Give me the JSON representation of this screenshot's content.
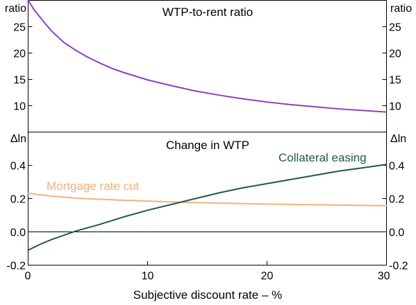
{
  "chart_data": [
    {
      "type": "line",
      "title": "WTP-to-rent ratio",
      "y_unit": "ratio",
      "ylim": [
        5,
        30
      ],
      "yticks": [
        10,
        15,
        20,
        25
      ],
      "yticklabels": [
        "10",
        "15",
        "20",
        "25"
      ],
      "xlim": [
        0,
        30
      ],
      "grid": false,
      "series": [
        {
          "color": "#8b3fc6",
          "x": [
            0,
            0.5,
            1,
            1.5,
            2,
            3,
            4,
            5,
            6,
            7,
            8,
            10,
            12,
            14,
            16,
            18,
            20,
            22,
            24,
            26,
            28,
            30
          ],
          "values": [
            30.0,
            28.2,
            26.8,
            25.4,
            24.1,
            22.0,
            20.5,
            19.2,
            18.1,
            17.1,
            16.3,
            14.9,
            13.8,
            12.8,
            12.0,
            11.3,
            10.7,
            10.2,
            9.8,
            9.4,
            9.1,
            8.8
          ]
        }
      ]
    },
    {
      "type": "line",
      "title": "Change in WTP",
      "y_unit": "Δln",
      "ylim": [
        -0.2,
        0.6
      ],
      "yticks": [
        -0.2,
        0,
        0.2,
        0.4
      ],
      "yticklabels": [
        "-0.2",
        "0.0",
        "0.2",
        "0.4"
      ],
      "xlim": [
        0,
        30
      ],
      "xticks": [
        0,
        10,
        20,
        30
      ],
      "xticklabels": [
        "0",
        "10",
        "20",
        "30"
      ],
      "xlabel": "Subjective discount rate – %",
      "grid": false,
      "series": [
        {
          "name": "Mortgage rate cut",
          "color": "#f6b07a",
          "x": [
            0,
            2,
            4,
            6,
            8,
            10,
            12,
            14,
            16,
            18,
            20,
            22,
            24,
            26,
            28,
            30
          ],
          "values": [
            0.232,
            0.214,
            0.203,
            0.196,
            0.19,
            0.185,
            0.18,
            0.176,
            0.173,
            0.17,
            0.167,
            0.165,
            0.163,
            0.161,
            0.159,
            0.158
          ]
        },
        {
          "name": "Collateral easing",
          "color": "#1e5a46",
          "x": [
            0,
            1,
            2,
            3,
            4,
            5,
            6,
            8,
            10,
            12,
            14,
            16,
            18,
            20,
            22,
            24,
            26,
            28,
            30
          ],
          "values": [
            -0.11,
            -0.075,
            -0.045,
            -0.02,
            0.005,
            0.025,
            0.045,
            0.09,
            0.13,
            0.165,
            0.2,
            0.235,
            0.265,
            0.29,
            0.315,
            0.34,
            0.365,
            0.385,
            0.405
          ]
        }
      ]
    }
  ]
}
